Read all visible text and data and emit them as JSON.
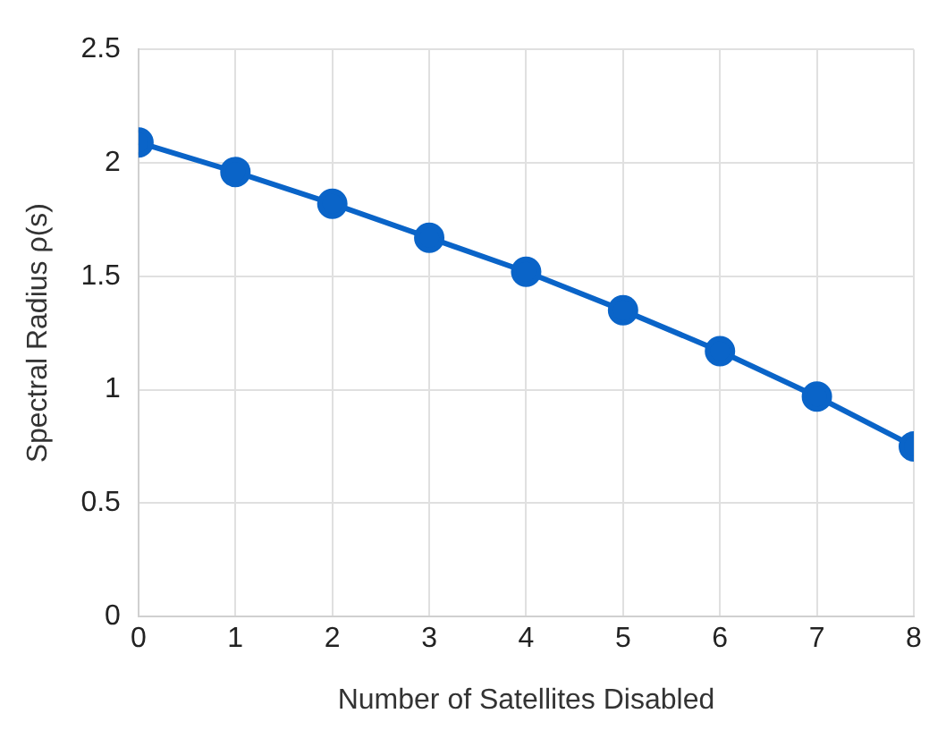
{
  "chart_data": {
    "type": "line",
    "xlabel": "Number of Satellites Disabled",
    "ylabel": "Spectral Radius ρ(s)",
    "x": [
      0,
      1,
      2,
      3,
      4,
      5,
      6,
      7,
      8
    ],
    "series": [
      {
        "color": "#0a64c8",
        "values": [
          2.09,
          1.96,
          1.82,
          1.67,
          1.52,
          1.35,
          1.17,
          0.97,
          0.75
        ]
      }
    ],
    "xlim": [
      0,
      8
    ],
    "xticks": [
      0,
      1,
      2,
      3,
      4,
      5,
      6,
      7,
      8
    ],
    "ylim": [
      0,
      2.5
    ],
    "yticks": [
      0,
      0.5,
      1,
      1.5,
      2,
      2.5
    ],
    "grid": true,
    "legend": false,
    "marker": "circle",
    "line_style": "solid"
  }
}
